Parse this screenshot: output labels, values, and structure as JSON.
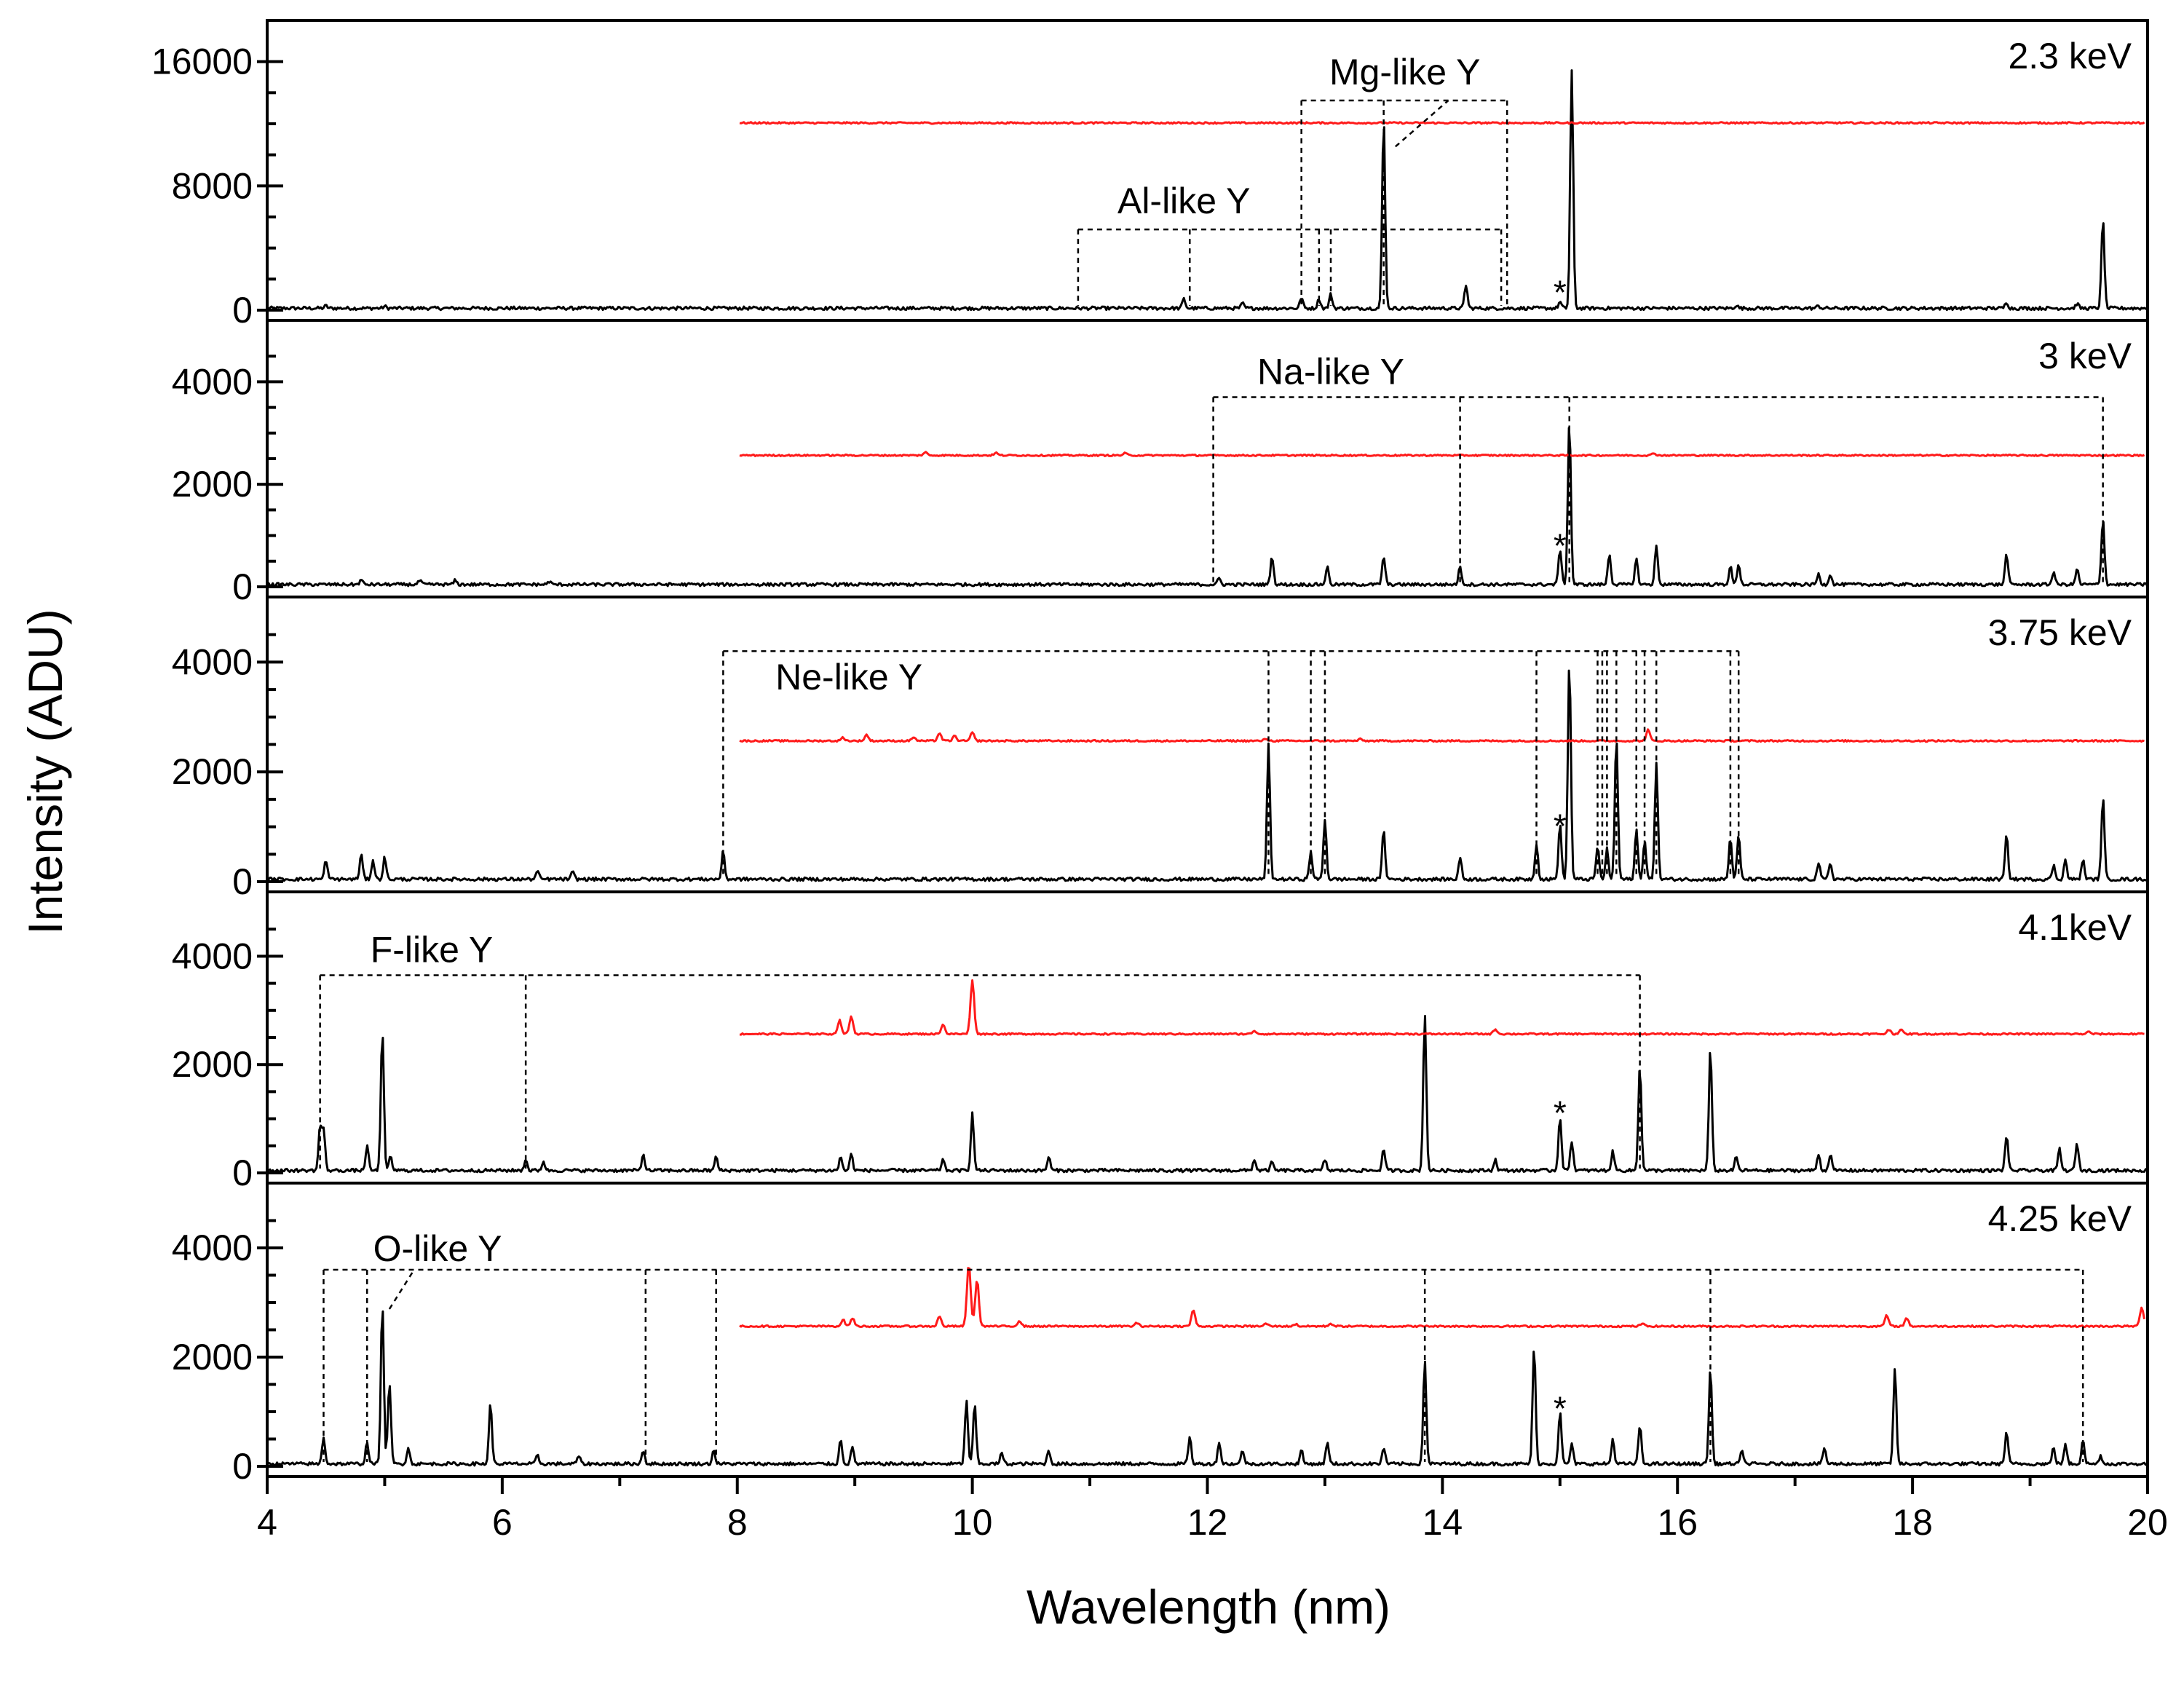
{
  "chart_data": {
    "type": "line",
    "title": "",
    "xlabel": "Wavelength (nm)",
    "ylabel": "Intensity (ADU)",
    "xlim": [
      4,
      20
    ],
    "xticks": [
      4,
      6,
      8,
      10,
      12,
      14,
      16,
      18,
      20
    ],
    "asterisk_wavelength": 15.0,
    "panels": [
      {
        "energy_label": "2.3 keV",
        "ylim": [
          0,
          18000
        ],
        "yticks": [
          0,
          8000,
          16000
        ],
        "reference_offset": 12000,
        "reference_peaks": [],
        "peaks": [
          [
            4.5,
            150
          ],
          [
            5.0,
            120
          ],
          [
            11.8,
            600
          ],
          [
            12.3,
            300
          ],
          [
            12.8,
            700
          ],
          [
            12.95,
            600
          ],
          [
            13.05,
            900
          ],
          [
            13.5,
            12200
          ],
          [
            14.2,
            1500
          ],
          [
            15.0,
            400
          ],
          [
            15.1,
            15300
          ],
          [
            16.5,
            200
          ],
          [
            17.2,
            150
          ],
          [
            18.8,
            400
          ],
          [
            19.4,
            300
          ],
          [
            19.62,
            5700
          ]
        ],
        "ion_groups": [
          {
            "label": "Mg-like Y",
            "box": [
              12.8,
              14.55
            ],
            "top": 13500,
            "lines": [
              12.8,
              13.5
            ],
            "callout": [
              13.6,
              14.05
            ]
          },
          {
            "label": "Al-like Y",
            "box": [
              10.9,
              14.5
            ],
            "top": 5200,
            "lines": [
              10.9,
              11.85,
              12.95,
              13.05,
              14.5
            ],
            "callout": null
          }
        ],
        "asterisk": {
          "x": 15.0,
          "y": 1800
        }
      },
      {
        "energy_label": "3 keV",
        "ylim": [
          0,
          5000
        ],
        "yticks": [
          0,
          2000,
          4000
        ],
        "reference_offset": 2550,
        "reference_peaks": [
          [
            9.6,
            60
          ],
          [
            10.2,
            50
          ],
          [
            11.3,
            40
          ],
          [
            15.8,
            40
          ]
        ],
        "peaks": [
          [
            4.8,
            90
          ],
          [
            5.3,
            80
          ],
          [
            5.6,
            80
          ],
          [
            6.4,
            60
          ],
          [
            12.1,
            120
          ],
          [
            12.55,
            550
          ],
          [
            13.02,
            350
          ],
          [
            13.5,
            550
          ],
          [
            14.15,
            350
          ],
          [
            15.0,
            700
          ],
          [
            15.08,
            3200
          ],
          [
            15.42,
            600
          ],
          [
            15.65,
            500
          ],
          [
            15.82,
            750
          ],
          [
            16.45,
            350
          ],
          [
            16.52,
            400
          ],
          [
            17.2,
            200
          ],
          [
            17.3,
            200
          ],
          [
            18.8,
            600
          ],
          [
            19.2,
            250
          ],
          [
            19.4,
            300
          ],
          [
            19.62,
            1300
          ]
        ],
        "ion_groups": [
          {
            "label": "Na-like Y",
            "box": [
              12.05,
              19.62
            ],
            "top": 3700,
            "lines": [
              12.05,
              14.15,
              15.08,
              19.62
            ],
            "callout": null
          }
        ],
        "asterisk": {
          "x": 15.0,
          "y": 1000
        }
      },
      {
        "energy_label": "3.75 keV",
        "ylim": [
          0,
          5000
        ],
        "yticks": [
          0,
          2000,
          4000
        ],
        "reference_offset": 2550,
        "reference_peaks": [
          [
            8.9,
            60
          ],
          [
            9.1,
            110
          ],
          [
            9.5,
            70
          ],
          [
            9.72,
            140
          ],
          [
            9.85,
            90
          ],
          [
            10.0,
            150
          ],
          [
            12.5,
            40
          ],
          [
            13.3,
            30
          ],
          [
            15.75,
            200
          ]
        ],
        "peaks": [
          [
            4.5,
            350
          ],
          [
            4.8,
            450
          ],
          [
            4.9,
            350
          ],
          [
            5.0,
            400
          ],
          [
            6.3,
            150
          ],
          [
            6.6,
            130
          ],
          [
            7.88,
            500
          ],
          [
            12.52,
            2450
          ],
          [
            12.88,
            500
          ],
          [
            13.0,
            1100
          ],
          [
            13.5,
            900
          ],
          [
            14.15,
            400
          ],
          [
            14.8,
            650
          ],
          [
            15.0,
            1000
          ],
          [
            15.08,
            4000
          ],
          [
            15.32,
            600
          ],
          [
            15.4,
            550
          ],
          [
            15.48,
            2600
          ],
          [
            15.65,
            900
          ],
          [
            15.72,
            700
          ],
          [
            15.82,
            2150
          ],
          [
            16.45,
            750
          ],
          [
            16.52,
            800
          ],
          [
            17.2,
            300
          ],
          [
            17.3,
            300
          ],
          [
            18.8,
            800
          ],
          [
            19.2,
            250
          ],
          [
            19.3,
            350
          ],
          [
            19.45,
            350
          ],
          [
            19.62,
            1500
          ]
        ],
        "ion_groups": [
          {
            "label": "Ne-like Y",
            "box": [
              7.88,
              16.52
            ],
            "top": 4200,
            "lines": [
              7.88,
              12.52,
              12.88,
              13.0,
              14.8,
              15.32,
              15.36,
              15.4,
              15.48,
              15.65,
              15.72,
              15.82,
              16.45,
              16.52
            ],
            "callout": null
          }
        ],
        "asterisk": {
          "x": 15.0,
          "y": 1200
        }
      },
      {
        "energy_label": "4.1keV",
        "ylim": [
          0,
          5000
        ],
        "yticks": [
          0,
          2000,
          4000
        ],
        "reference_offset": 2550,
        "reference_peaks": [
          [
            8.87,
            250
          ],
          [
            8.97,
            320
          ],
          [
            9.75,
            180
          ],
          [
            10.0,
            1000
          ],
          [
            12.4,
            60
          ],
          [
            14.45,
            90
          ],
          [
            17.8,
            80
          ],
          [
            17.9,
            80
          ],
          [
            19.5,
            40
          ]
        ],
        "peaks": [
          [
            4.45,
            800
          ],
          [
            4.48,
            750
          ],
          [
            4.85,
            450
          ],
          [
            4.98,
            2600
          ],
          [
            5.05,
            250
          ],
          [
            6.2,
            200
          ],
          [
            6.35,
            170
          ],
          [
            7.2,
            300
          ],
          [
            7.82,
            250
          ],
          [
            8.88,
            250
          ],
          [
            8.97,
            300
          ],
          [
            9.75,
            200
          ],
          [
            10.0,
            1050
          ],
          [
            10.65,
            250
          ],
          [
            12.4,
            200
          ],
          [
            12.55,
            150
          ],
          [
            13.0,
            200
          ],
          [
            13.5,
            400
          ],
          [
            13.85,
            2900
          ],
          [
            14.45,
            200
          ],
          [
            15.0,
            1000
          ],
          [
            15.1,
            550
          ],
          [
            15.45,
            350
          ],
          [
            15.68,
            1950
          ],
          [
            16.28,
            2250
          ],
          [
            16.5,
            250
          ],
          [
            17.2,
            300
          ],
          [
            17.3,
            300
          ],
          [
            18.8,
            650
          ],
          [
            19.25,
            400
          ],
          [
            19.4,
            500
          ]
        ],
        "ion_groups": [
          {
            "label": "F-like Y",
            "box": [
              4.45,
              15.68
            ],
            "top": 3650,
            "lines": [
              4.45,
              6.2,
              15.68
            ],
            "callout": null
          }
        ],
        "asterisk": {
          "x": 15.0,
          "y": 1300
        }
      },
      {
        "energy_label": "4.25 keV",
        "ylim": [
          0,
          5000
        ],
        "yticks": [
          0,
          2000,
          4000
        ],
        "reference_offset": 2550,
        "reference_peaks": [
          [
            8.9,
            120
          ],
          [
            8.98,
            150
          ],
          [
            9.72,
            180
          ],
          [
            9.97,
            1150
          ],
          [
            10.04,
            850
          ],
          [
            10.4,
            100
          ],
          [
            11.4,
            60
          ],
          [
            11.88,
            300
          ],
          [
            12.5,
            50
          ],
          [
            12.75,
            40
          ],
          [
            13.05,
            50
          ],
          [
            15.7,
            50
          ],
          [
            17.78,
            200
          ],
          [
            17.95,
            150
          ],
          [
            19.95,
            350
          ]
        ],
        "peaks": [
          [
            4.48,
            500
          ],
          [
            4.85,
            400
          ],
          [
            4.98,
            2900
          ],
          [
            5.04,
            1500
          ],
          [
            5.2,
            300
          ],
          [
            5.9,
            1100
          ],
          [
            6.3,
            150
          ],
          [
            6.65,
            150
          ],
          [
            7.2,
            250
          ],
          [
            7.8,
            250
          ],
          [
            8.88,
            450
          ],
          [
            8.98,
            300
          ],
          [
            9.95,
            1150
          ],
          [
            10.02,
            1100
          ],
          [
            10.25,
            200
          ],
          [
            10.65,
            250
          ],
          [
            11.85,
            500
          ],
          [
            12.1,
            400
          ],
          [
            12.3,
            250
          ],
          [
            12.8,
            250
          ],
          [
            13.02,
            400
          ],
          [
            13.5,
            300
          ],
          [
            13.85,
            1900
          ],
          [
            14.78,
            2150
          ],
          [
            15.0,
            950
          ],
          [
            15.1,
            350
          ],
          [
            15.45,
            450
          ],
          [
            15.68,
            700
          ],
          [
            16.28,
            1750
          ],
          [
            16.55,
            250
          ],
          [
            17.25,
            300
          ],
          [
            17.85,
            1750
          ],
          [
            18.8,
            600
          ],
          [
            19.2,
            300
          ],
          [
            19.3,
            350
          ],
          [
            19.45,
            450
          ],
          [
            19.6,
            150
          ]
        ],
        "ion_groups": [
          {
            "label": "O-like Y",
            "box": [
              4.48,
              19.45
            ],
            "top": 3600,
            "lines": [
              4.48,
              4.85,
              7.22,
              7.82,
              13.85,
              16.28,
              19.45
            ],
            "callout": [
              5.04,
              5.25
            ]
          }
        ],
        "asterisk": {
          "x": 15.0,
          "y": 1250
        }
      }
    ]
  }
}
